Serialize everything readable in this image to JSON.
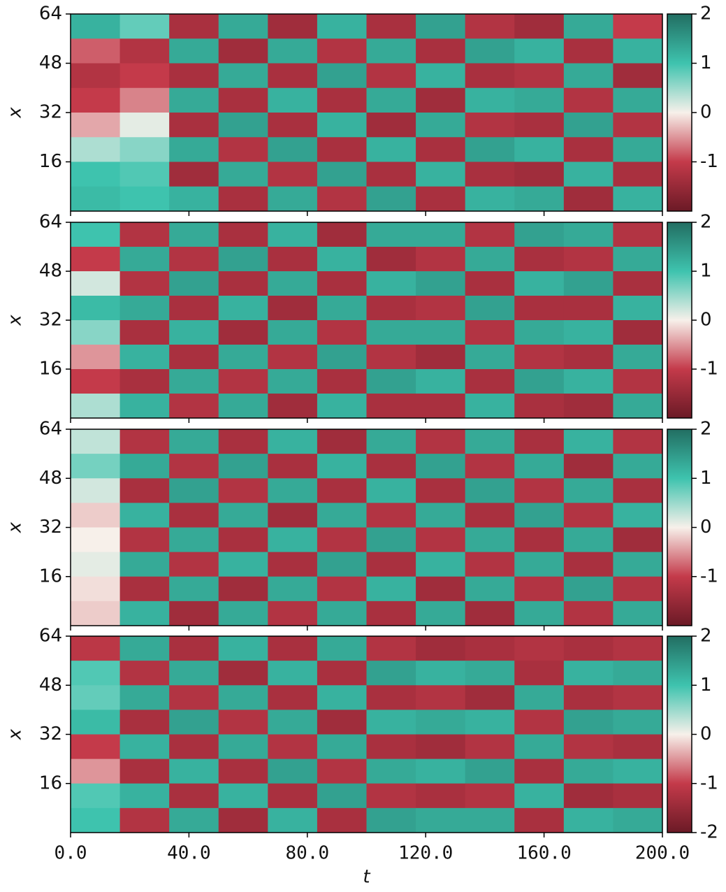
{
  "chart_data": [
    {
      "type": "heatmap",
      "ylabel": "x",
      "xlim": [
        0,
        200
      ],
      "ylim": [
        0,
        64
      ],
      "xticks": [
        0,
        40,
        80,
        120,
        160,
        200
      ],
      "show_xtick_labels": false,
      "yticks": [
        16,
        32,
        48,
        64
      ],
      "clim": [
        -2,
        2
      ],
      "cticks": [
        -1,
        0,
        1,
        2
      ],
      "colormap": [
        "#6b1a26",
        "#c43a4a",
        "#f7f0ea",
        "#3ec3ae",
        "#226e62"
      ],
      "z": [
        [
          1.2,
          0.8,
          -1.3,
          1.3,
          -1.4,
          1.2,
          -1.3,
          1.4,
          -1.2,
          -1.4,
          1.3,
          -1.0
        ],
        [
          -0.8,
          -1.2,
          1.3,
          -1.4,
          1.3,
          -1.2,
          1.3,
          -1.3,
          1.4,
          1.2,
          -1.3,
          1.2
        ],
        [
          -1.2,
          -1.0,
          -1.3,
          1.3,
          -1.3,
          1.4,
          -1.2,
          1.2,
          -1.3,
          -1.2,
          1.3,
          -1.4
        ],
        [
          -1.0,
          -0.6,
          1.3,
          -1.3,
          1.2,
          -1.3,
          1.3,
          -1.4,
          1.2,
          1.3,
          -1.2,
          1.3
        ],
        [
          -0.4,
          0.1,
          -1.3,
          1.4,
          -1.3,
          1.2,
          -1.4,
          1.3,
          -1.2,
          -1.3,
          1.4,
          -1.2
        ],
        [
          0.4,
          0.6,
          1.3,
          -1.2,
          1.4,
          -1.3,
          1.2,
          -1.3,
          1.4,
          1.2,
          -1.3,
          1.3
        ],
        [
          1.0,
          0.9,
          -1.4,
          1.3,
          -1.2,
          1.4,
          -1.3,
          1.2,
          -1.3,
          -1.4,
          1.2,
          -1.3
        ],
        [
          1.1,
          1.0,
          1.2,
          -1.3,
          1.3,
          -1.2,
          1.4,
          -1.3,
          1.2,
          1.3,
          -1.4,
          1.2
        ]
      ]
    },
    {
      "type": "heatmap",
      "ylabel": "x",
      "xlim": [
        0,
        200
      ],
      "ylim": [
        0,
        64
      ],
      "xticks": [
        0,
        40,
        80,
        120,
        160,
        200
      ],
      "show_xtick_labels": false,
      "yticks": [
        16,
        32,
        48,
        64
      ],
      "clim": [
        -2,
        2
      ],
      "cticks": [
        -1,
        0,
        1,
        2
      ],
      "colormap": [
        "#6b1a26",
        "#c43a4a",
        "#f7f0ea",
        "#3ec3ae",
        "#226e62"
      ],
      "z": [
        [
          1.0,
          -1.2,
          1.3,
          -1.3,
          1.2,
          -1.4,
          1.3,
          1.3,
          -1.2,
          1.4,
          1.3,
          -1.2
        ],
        [
          -1.0,
          1.3,
          -1.2,
          1.4,
          -1.3,
          1.2,
          -1.4,
          -1.2,
          1.3,
          -1.3,
          -1.2,
          1.3
        ],
        [
          0.2,
          -1.2,
          1.4,
          -1.3,
          1.3,
          -1.3,
          1.2,
          1.4,
          -1.3,
          1.2,
          1.4,
          -1.3
        ],
        [
          1.1,
          1.3,
          -1.3,
          1.2,
          -1.4,
          1.3,
          -1.3,
          -1.2,
          1.4,
          -1.3,
          -1.3,
          1.2
        ],
        [
          0.6,
          -1.3,
          1.2,
          -1.4,
          1.3,
          -1.2,
          1.3,
          1.3,
          -1.2,
          1.3,
          1.2,
          -1.4
        ],
        [
          -0.5,
          1.2,
          -1.3,
          1.3,
          -1.2,
          1.4,
          -1.2,
          -1.4,
          1.3,
          -1.2,
          -1.3,
          1.3
        ],
        [
          -1.0,
          -1.3,
          1.3,
          -1.2,
          1.3,
          -1.3,
          1.4,
          1.2,
          -1.3,
          1.4,
          1.2,
          -1.2
        ],
        [
          0.4,
          1.2,
          -1.2,
          1.3,
          -1.4,
          1.2,
          -1.3,
          -1.3,
          1.2,
          -1.3,
          -1.4,
          1.3
        ]
      ]
    },
    {
      "type": "heatmap",
      "ylabel": "x",
      "xlim": [
        0,
        200
      ],
      "ylim": [
        0,
        64
      ],
      "xticks": [
        0,
        40,
        80,
        120,
        160,
        200
      ],
      "show_xtick_labels": false,
      "yticks": [
        16,
        32,
        48,
        64
      ],
      "clim": [
        -2,
        2
      ],
      "cticks": [
        -1,
        0,
        1,
        2
      ],
      "colormap": [
        "#6b1a26",
        "#c43a4a",
        "#f7f0ea",
        "#3ec3ae",
        "#226e62"
      ],
      "z": [
        [
          0.3,
          -1.2,
          1.3,
          -1.3,
          1.2,
          -1.4,
          1.3,
          -1.2,
          1.3,
          -1.3,
          1.2,
          -1.2
        ],
        [
          0.7,
          1.3,
          -1.2,
          1.4,
          -1.3,
          1.2,
          -1.3,
          1.4,
          -1.2,
          1.3,
          -1.4,
          1.3
        ],
        [
          0.2,
          -1.3,
          1.4,
          -1.2,
          1.3,
          -1.3,
          1.2,
          -1.3,
          1.4,
          -1.2,
          1.3,
          -1.3
        ],
        [
          -0.2,
          1.2,
          -1.3,
          1.3,
          -1.4,
          1.3,
          -1.2,
          1.3,
          -1.3,
          1.4,
          -1.2,
          1.2
        ],
        [
          0.0,
          -1.2,
          1.3,
          -1.3,
          1.2,
          -1.2,
          1.4,
          -1.2,
          1.3,
          -1.3,
          1.3,
          -1.4
        ],
        [
          0.1,
          1.3,
          -1.2,
          1.2,
          -1.3,
          1.4,
          -1.3,
          1.2,
          -1.2,
          1.3,
          -1.3,
          1.3
        ],
        [
          -0.1,
          -1.3,
          1.3,
          -1.4,
          1.3,
          -1.2,
          1.2,
          -1.4,
          1.3,
          -1.2,
          1.4,
          -1.2
        ],
        [
          -0.2,
          1.2,
          -1.4,
          1.3,
          -1.2,
          1.3,
          -1.3,
          1.3,
          -1.4,
          1.3,
          -1.2,
          1.3
        ]
      ]
    },
    {
      "type": "heatmap",
      "ylabel": "x",
      "xlabel": "t",
      "xlim": [
        0,
        200
      ],
      "ylim": [
        0,
        64
      ],
      "show_xtick_labels": true,
      "xticks": [
        {
          "value": 0,
          "label": "0.0"
        },
        {
          "value": 40,
          "label": "40.0"
        },
        {
          "value": 80,
          "label": "80.0"
        },
        {
          "value": 120,
          "label": "120.0"
        },
        {
          "value": 160,
          "label": "160.0"
        },
        {
          "value": 200,
          "label": "200.0"
        }
      ],
      "yticks": [
        16,
        32,
        48,
        64
      ],
      "clim": [
        -2,
        2
      ],
      "cticks": [
        -2,
        -1,
        0,
        1,
        2
      ],
      "colormap": [
        "#6b1a26",
        "#c43a4a",
        "#f7f0ea",
        "#3ec3ae",
        "#226e62"
      ],
      "z": [
        [
          -1.1,
          1.3,
          -1.3,
          1.2,
          -1.3,
          1.3,
          -1.2,
          -1.4,
          -1.3,
          -1.2,
          -1.3,
          -1.2
        ],
        [
          0.9,
          -1.2,
          1.3,
          -1.4,
          1.2,
          -1.3,
          1.4,
          1.2,
          1.3,
          -1.3,
          1.2,
          1.3
        ],
        [
          0.8,
          1.3,
          -1.2,
          1.3,
          -1.3,
          1.2,
          -1.3,
          -1.2,
          -1.4,
          1.3,
          -1.3,
          -1.2
        ],
        [
          1.1,
          -1.3,
          1.4,
          -1.2,
          1.3,
          -1.4,
          1.2,
          1.3,
          1.2,
          -1.2,
          1.4,
          1.3
        ],
        [
          -1.0,
          1.2,
          -1.3,
          1.3,
          -1.2,
          1.3,
          -1.3,
          -1.4,
          -1.2,
          1.3,
          -1.2,
          -1.3
        ],
        [
          -0.5,
          -1.3,
          1.2,
          -1.3,
          1.4,
          -1.2,
          1.3,
          1.2,
          1.4,
          -1.3,
          1.3,
          1.2
        ],
        [
          0.9,
          1.2,
          -1.3,
          1.2,
          -1.3,
          1.4,
          -1.2,
          -1.3,
          -1.2,
          1.2,
          -1.4,
          -1.3
        ],
        [
          1.0,
          -1.2,
          1.3,
          -1.4,
          1.2,
          -1.3,
          1.4,
          1.3,
          1.3,
          -1.3,
          1.2,
          1.3
        ]
      ]
    }
  ]
}
